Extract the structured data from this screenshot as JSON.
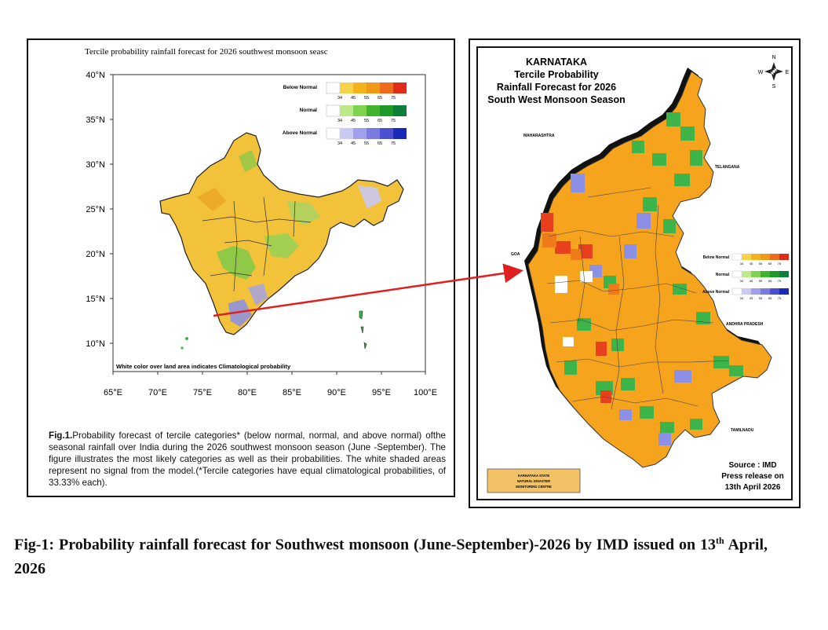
{
  "india_map": {
    "title": "Tercile probability rainfall forecast for 2026 southwest monsoon  seasc",
    "lat_labels": [
      "40°N",
      "35°N",
      "30°N",
      "25°N",
      "20°N",
      "15°N",
      "10°N"
    ],
    "lon_labels": [
      "65°E",
      "70°E",
      "75°E",
      "80°E",
      "85°E",
      "90°E",
      "95°E",
      "100°E"
    ],
    "legend": [
      {
        "name": "Below Normal",
        "ticks": [
          "34",
          "45",
          "55",
          "65",
          "75"
        ],
        "colors": [
          "#ffffff",
          "#f5d24a",
          "#f3b21e",
          "#f09a1a",
          "#ee6a1c",
          "#e02a1a"
        ]
      },
      {
        "name": "Normal",
        "ticks": [
          "34",
          "45",
          "55",
          "65",
          "75"
        ],
        "colors": [
          "#ffffff",
          "#bde88a",
          "#7fd34f",
          "#3fb42c",
          "#1f9a2a",
          "#0f7e3a"
        ]
      },
      {
        "name": "Above Normal",
        "ticks": [
          "34",
          "45",
          "55",
          "65",
          "75"
        ],
        "colors": [
          "#ffffff",
          "#c9c9f2",
          "#a0a0ec",
          "#7a7ae0",
          "#4b50d0",
          "#1a2ab8"
        ]
      }
    ],
    "footnote": "White color over land area indicates Climatological probability",
    "caption_label": "Fig.1.",
    "caption_text": "Probability forecast of tercile categories* (below normal, normal, and above normal) ofthe seasonal rainfall over India during the 2026 southwest monsoon season (June -September).  The figure illustrates the most likely categories as well as their probabilities.  The white shaded areas represent no signal from the model.(*Tercile categories have equal climatological probabilities, of 33.33% each)."
  },
  "karnataka_map": {
    "title_line1": "KARNATAKA",
    "title_line2": "Tercile Probability",
    "title_line3": "Rainfall Forecast for 2026",
    "title_line4": "South West Monsoon Season",
    "compass": {
      "n": "N",
      "s": "S",
      "e": "E",
      "w": "W"
    },
    "neighbors": {
      "maharashtra": "MAHARASHTRA",
      "telangana": "TELANGANA",
      "andhra": "ANDHRA PRADESH",
      "tamilnadu": "TAMILNADU",
      "goa": "GOA"
    },
    "legend": [
      {
        "name": "Below Normal",
        "ticks": [
          "34",
          "45",
          "55",
          "65",
          "75"
        ]
      },
      {
        "name": "Normal",
        "ticks": [
          "34",
          "45",
          "55",
          "65",
          "75"
        ]
      },
      {
        "name": "Above Normal",
        "ticks": [
          "34",
          "45",
          "55",
          "65",
          "75"
        ]
      }
    ],
    "source_line1": "Source : IMD",
    "source_line2": "Press release on",
    "source_line3": "13th April 2026",
    "logo_line1": "KARNATAKA STATE",
    "logo_line2": "NATURAL DISASTER",
    "logo_line3": "MONITORING CENTRE",
    "colors": {
      "orange": "#f6a31e",
      "green": "#3cb44a",
      "blue": "#8b8fe6",
      "red": "#e8401c",
      "white": "#ffffff"
    }
  },
  "figure_caption": {
    "main": "Fig-1: Probability rainfall forecast for Southwest monsoon (June-September)-2026 by IMD issued on 13",
    "sup": "th",
    "tail": " April, 2026"
  }
}
